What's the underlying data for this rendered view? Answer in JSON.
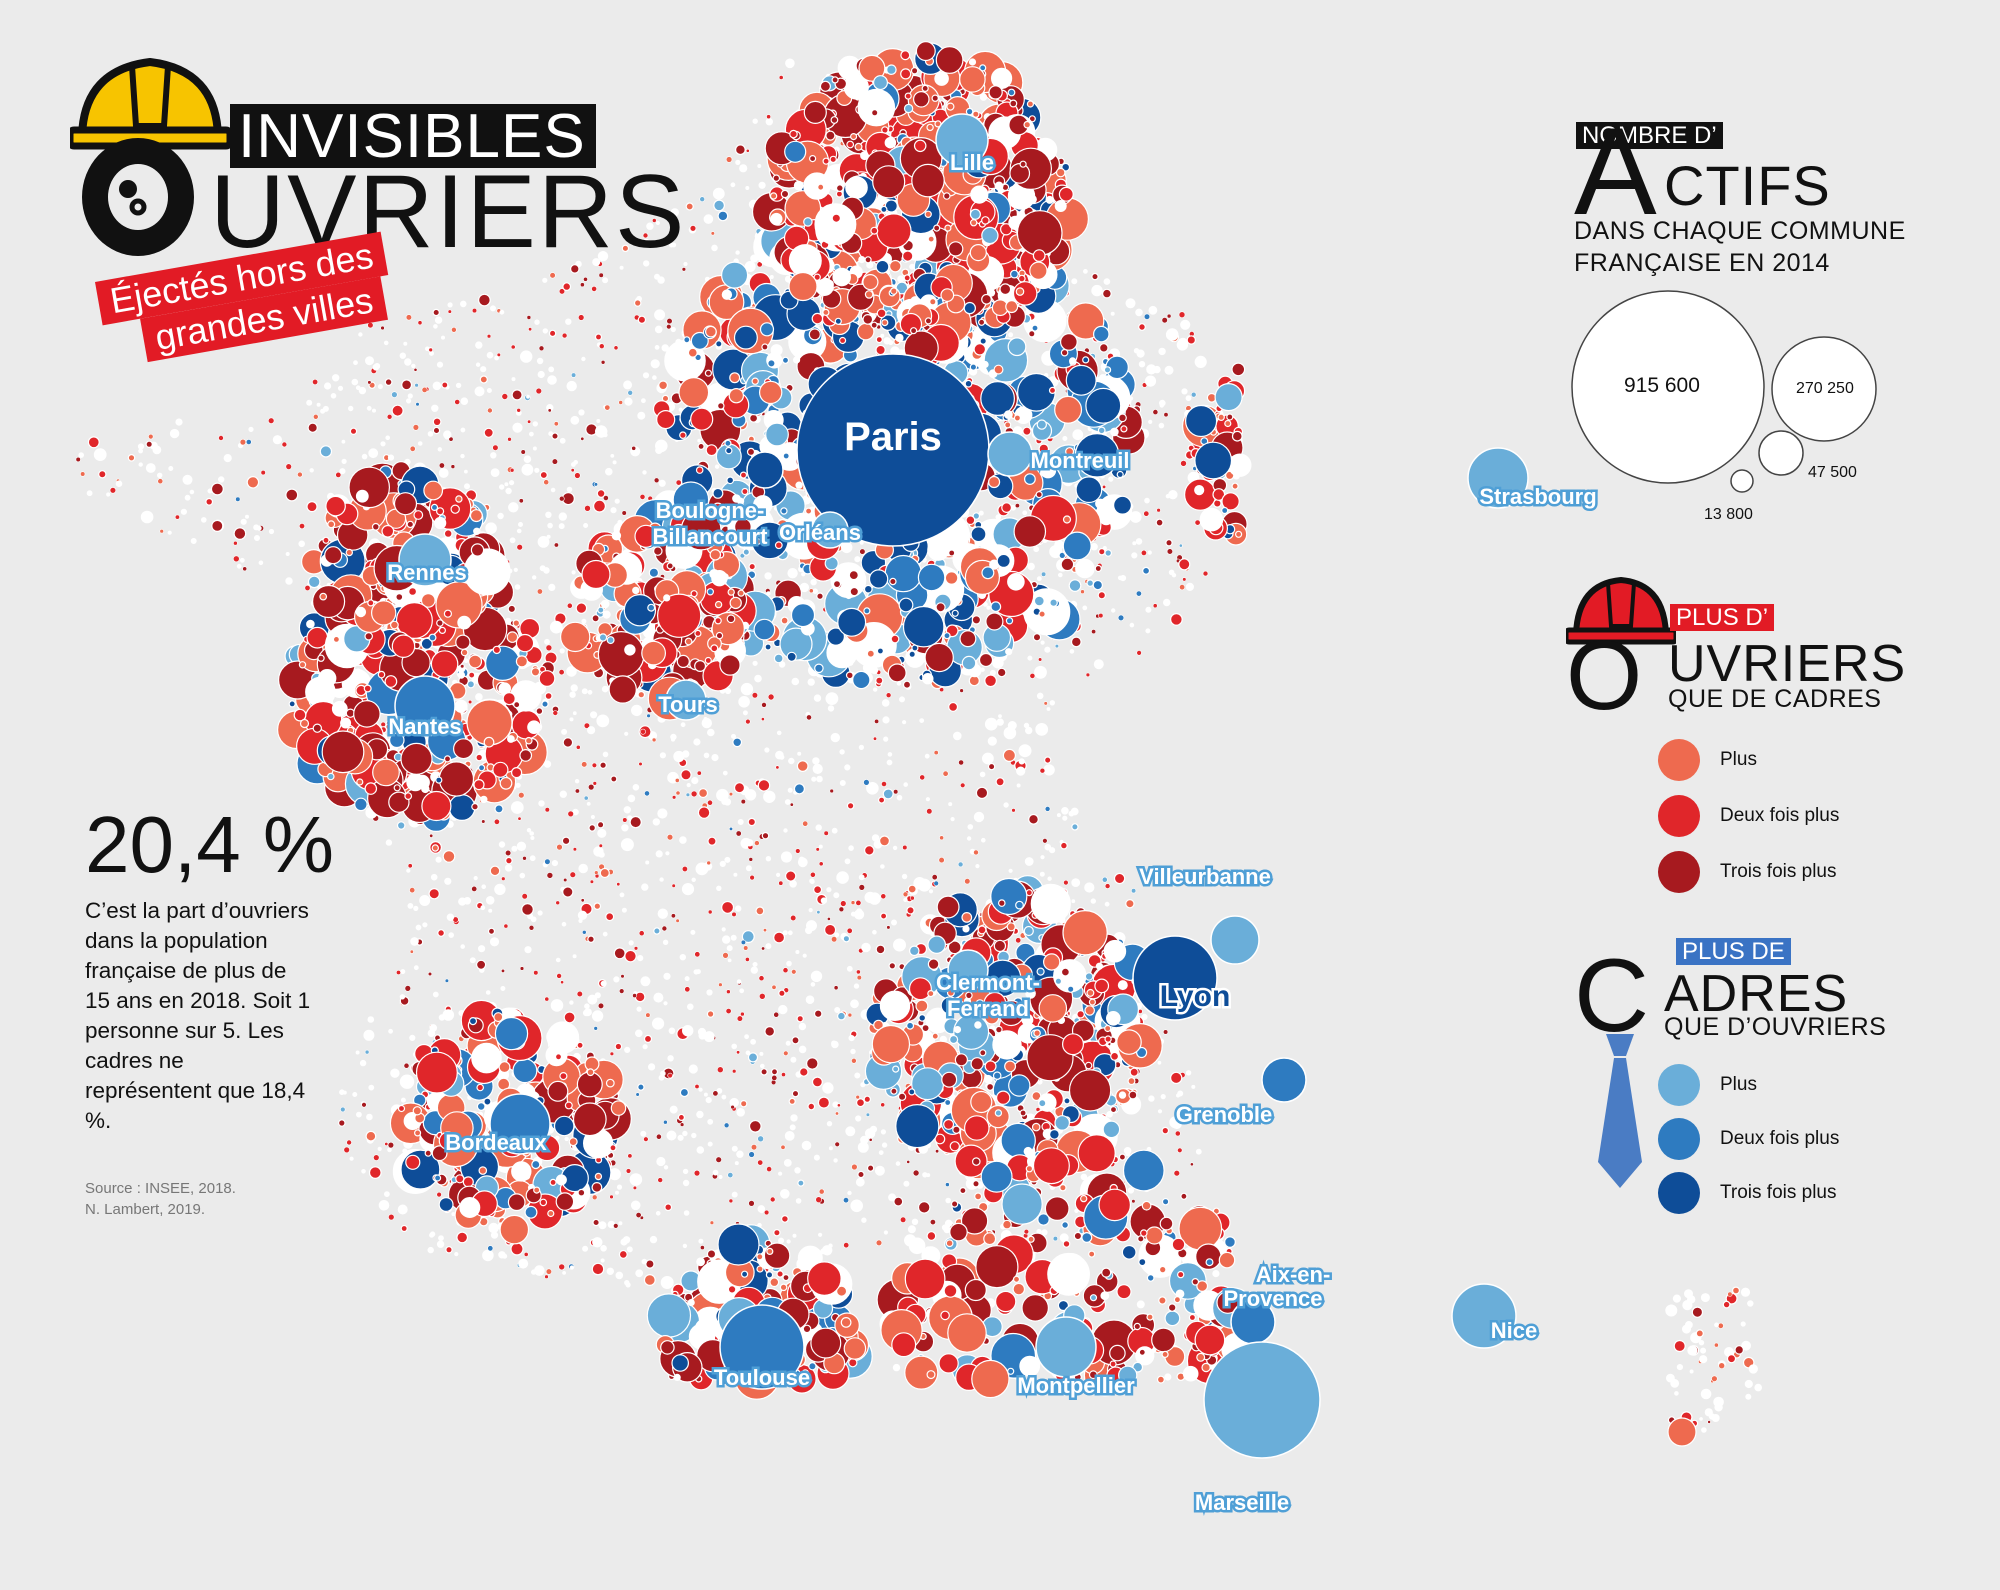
{
  "title": {
    "line1": "INVISIBLES",
    "line2_first_letter": "O",
    "line2_rest": "UVRIERS",
    "subtitle_line1": "Éjectés hors des",
    "subtitle_line2": "grandes villes"
  },
  "stat": {
    "value": "20,4 %",
    "text": "C’est la part d’ouvriers dans la population française de plus de 15 ans en 2018. Soit 1 personne sur 5. Les cadres ne représentent que 18,4 %."
  },
  "source": {
    "line1": "Source : INSEE, 2018.",
    "line2": "N. Lambert, 2019."
  },
  "legend_actifs": {
    "tag": "NOMBRE D’",
    "big_letter": "A",
    "word_rest": "CTIFS",
    "desc_line1": "DANS CHAQUE COMMUNE",
    "desc_line2": "FRANÇAISE EN 2014",
    "sizes": [
      {
        "value": 915600,
        "label": "915 600"
      },
      {
        "value": 270250,
        "label": "270 250"
      },
      {
        "value": 47500,
        "label": "47 500"
      },
      {
        "value": 13800,
        "label": "13 800"
      }
    ]
  },
  "legend_ouvriers": {
    "tag": "PLUS D’",
    "big_letter": "O",
    "word_rest": "UVRIERS",
    "desc": "QUE DE CADRES",
    "items": [
      {
        "label": "Plus",
        "color": "#ee6a4f"
      },
      {
        "label": "Deux fois plus",
        "color": "#e0262a"
      },
      {
        "label": "Trois fois plus",
        "color": "#a71a1f"
      }
    ]
  },
  "legend_cadres": {
    "tag": "PLUS DE",
    "big_letter": "C",
    "word_rest": "ADRES",
    "desc": "QUE D’OUVRIERS",
    "items": [
      {
        "label": "Plus",
        "color": "#6aaed9"
      },
      {
        "label": "Deux fois plus",
        "color": "#2e7bc0"
      },
      {
        "label": "Trois fois plus",
        "color": "#0e4d98"
      }
    ]
  },
  "cities": [
    {
      "name": "Paris",
      "lon": 2.35,
      "lat": 48.86,
      "category": "cadres-3",
      "actifs": 915600
    },
    {
      "name": "Lille",
      "lon": 3.06,
      "lat": 50.63,
      "category": "cadres-1"
    },
    {
      "name": "Montreuil",
      "lon": 2.44,
      "lat": 48.86,
      "category": "cadres-1"
    },
    {
      "name": "Boulogne-",
      "lon": 2.24,
      "lat": 48.84,
      "category": "cadres-3"
    },
    {
      "name": "Billancourt",
      "lon": 2.24,
      "lat": 48.84,
      "category": "cadres-3"
    },
    {
      "name": "Orléans",
      "lon": 1.91,
      "lat": 47.9,
      "category": "cadres-1"
    },
    {
      "name": "Strasbourg",
      "lon": 7.75,
      "lat": 48.58,
      "category": "cadres-1"
    },
    {
      "name": "Rennes",
      "lon": -1.68,
      "lat": 48.11,
      "category": "cadres-1"
    },
    {
      "name": "Nantes",
      "lon": -1.55,
      "lat": 47.22,
      "category": "cadres-2"
    },
    {
      "name": "Tours",
      "lon": 0.69,
      "lat": 47.39,
      "category": "cadres-1"
    },
    {
      "name": "Villeurbanne",
      "lon": 4.88,
      "lat": 45.77,
      "category": "cadres-1"
    },
    {
      "name": "Lyon",
      "lon": 4.84,
      "lat": 45.76,
      "category": "cadres-3"
    },
    {
      "name": "Clermont-",
      "lon": 3.08,
      "lat": 45.78,
      "category": "cadres-1"
    },
    {
      "name": "Ferrand",
      "lon": 3.08,
      "lat": 45.78,
      "category": "cadres-1"
    },
    {
      "name": "Grenoble",
      "lon": 5.72,
      "lat": 45.19,
      "category": "cadres-2"
    },
    {
      "name": "Bordeaux",
      "lon": -0.58,
      "lat": 44.84,
      "category": "cadres-2"
    },
    {
      "name": "Toulouse",
      "lon": 1.44,
      "lat": 43.6,
      "category": "cadres-2"
    },
    {
      "name": "Montpellier",
      "lon": 3.88,
      "lat": 43.61,
      "category": "cadres-1"
    },
    {
      "name": "Aix-en-",
      "lon": 5.45,
      "lat": 43.53,
      "category": "cadres-2"
    },
    {
      "name": "Provence",
      "lon": 5.45,
      "lat": 43.53,
      "category": "cadres-2"
    },
    {
      "name": "Marseille",
      "lon": 5.37,
      "lat": 43.3,
      "category": "cadres-1"
    },
    {
      "name": "Nice",
      "lon": 7.26,
      "lat": 43.7,
      "category": "cadres-1"
    }
  ]
}
